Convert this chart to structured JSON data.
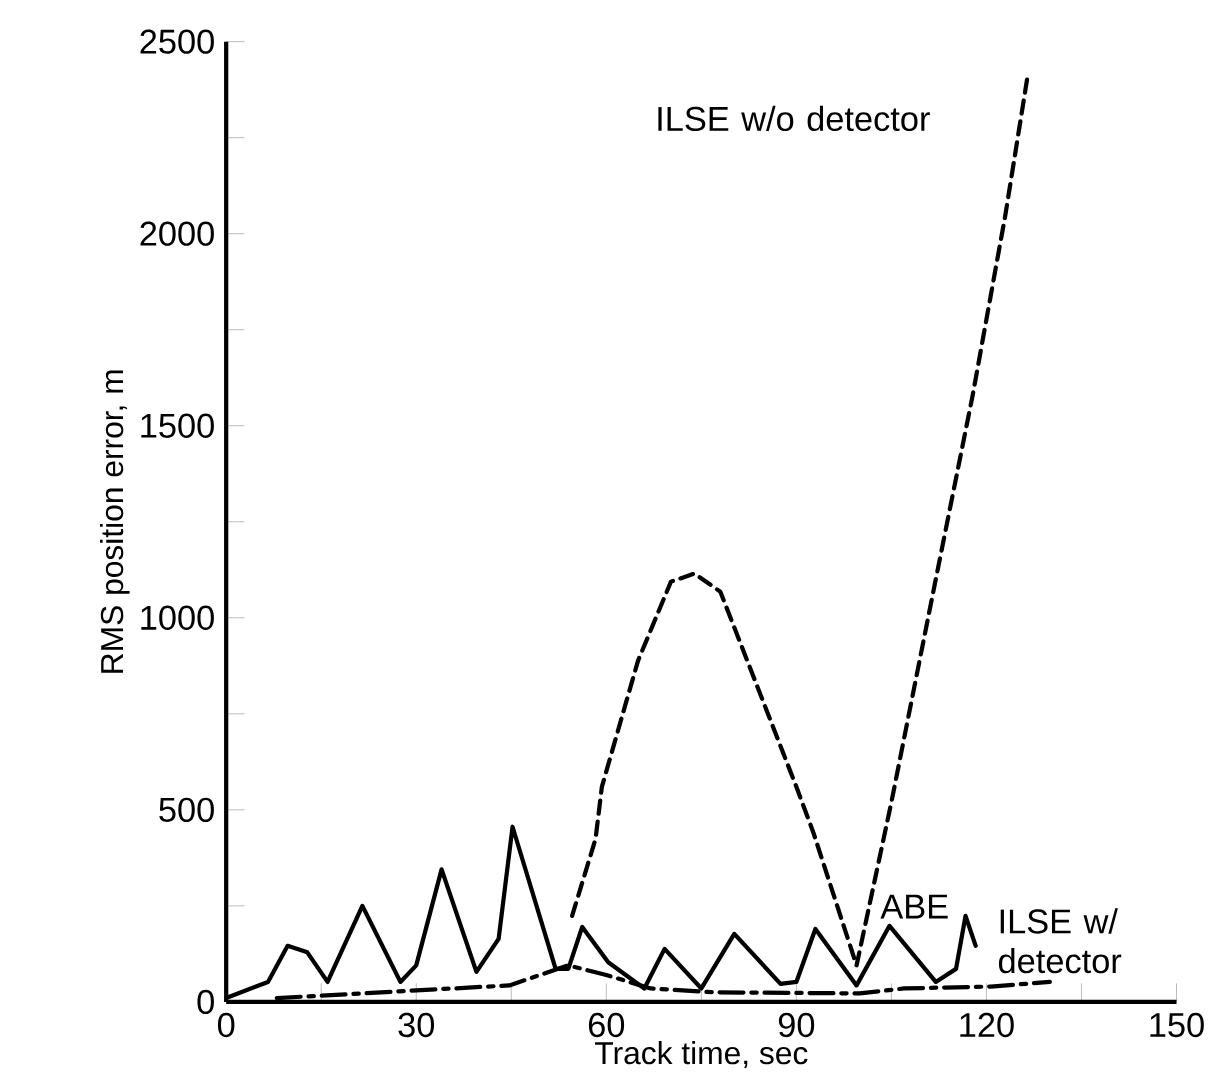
{
  "chart_data": {
    "type": "line",
    "xlabel": "Track time, sec",
    "ylabel": "RMS position error, m",
    "xlim": [
      0,
      150
    ],
    "ylim": [
      0,
      2500
    ],
    "xticks": [
      0,
      {
        "value": 15,
        "label": null
      },
      30,
      {
        "value": 45,
        "label": null
      },
      60,
      {
        "value": 75,
        "label": null
      },
      90,
      {
        "value": 105,
        "label": null
      },
      120,
      {
        "value": 135,
        "label": null
      },
      150
    ],
    "yticks": [
      0,
      {
        "value": 250,
        "label": null
      },
      500,
      {
        "value": 750,
        "label": null
      },
      1000,
      {
        "value": 1250,
        "label": null
      },
      1500,
      {
        "value": 1750,
        "label": null
      },
      2000,
      {
        "value": 2250,
        "label": null
      },
      2500
    ],
    "grid": false,
    "legend": false,
    "marker": "none",
    "series": [
      {
        "name": "ABE",
        "color": "#000000",
        "line_style": "solid",
        "x": [
          0.3,
          6.6,
          9.7,
          12.8,
          16,
          21.5,
          27.5,
          30,
          34,
          39.5,
          43,
          45.2,
          52,
          54,
          56.2,
          60.3,
          66,
          69.2,
          75,
          80.2,
          87.5,
          90,
          93,
          99.5,
          104.7,
          112,
          115.2,
          116.7,
          118.3
        ],
        "values": [
          12,
          52,
          146,
          129,
          52,
          250,
          52,
          95,
          345,
          78,
          164,
          456,
          86,
          86,
          195,
          103,
          35,
          138,
          35,
          177,
          47,
          52,
          190,
          43,
          198,
          52,
          86,
          224,
          146
        ]
      },
      {
        "name": "ILSE w/o detector",
        "color": "#000000",
        "line_style": "dashed",
        "x": [
          54.6,
          58.3,
          59.3,
          65,
          70.2,
          73.9,
          78,
          90,
          92.7,
          99.5,
          105,
          112,
          117.8,
          123,
          126.6
        ],
        "values": [
          224,
          424,
          560,
          888,
          1094,
          1115,
          1068,
          560,
          440,
          95,
          520,
          1100,
          1577,
          2050,
          2421
        ]
      },
      {
        "name": "ILSE w/ detector",
        "color": "#000000",
        "line_style": "dotted",
        "x": [
          8,
          44.7,
          54,
          60,
          67,
          77,
          100,
          107,
          120.7,
          130
        ],
        "values": [
          10,
          43,
          95,
          70,
          35,
          25,
          22,
          35,
          40,
          52
        ]
      }
    ]
  }
}
